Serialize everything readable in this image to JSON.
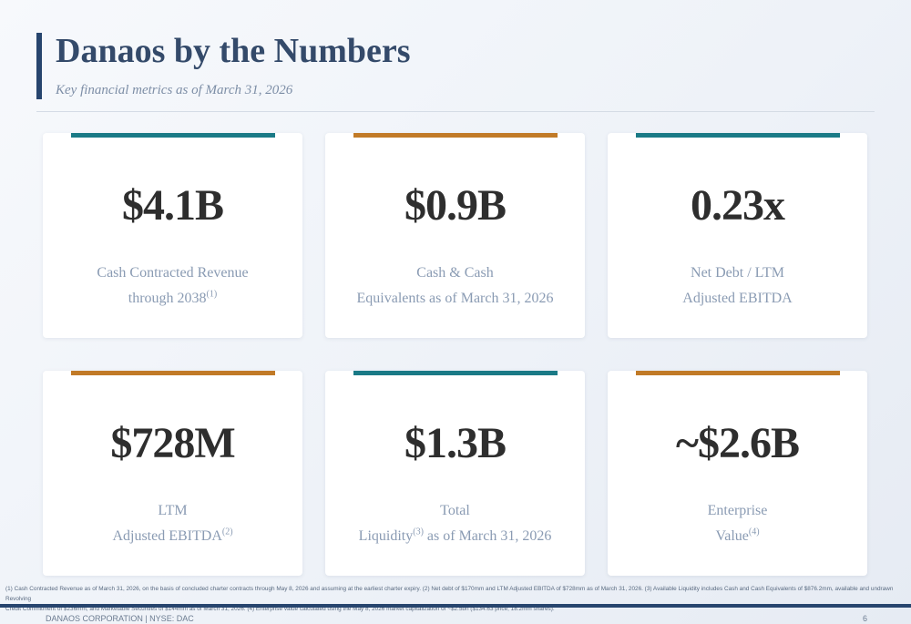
{
  "header": {
    "title": "Danaos by the Numbers",
    "subtitle": "Key financial metrics as of March 31, 2026"
  },
  "colors": {
    "teal": "#1a7a86",
    "amber": "#c17a27",
    "navy": "#27456e"
  },
  "metrics": [
    {
      "value": "$4.1B",
      "label_line1": "Cash Contracted Revenue",
      "label_line2": "through 2038",
      "label_line2_sup": "(1)",
      "accent": "teal"
    },
    {
      "value": "$0.9B",
      "label_line1": "Cash & Cash",
      "label_line2": "Equivalents as of March 31, 2026",
      "accent": "amber"
    },
    {
      "value": "0.23x",
      "label_line1": "Net Debt / LTM",
      "label_line2": "Adjusted EBITDA",
      "accent": "teal"
    },
    {
      "value": "$728M",
      "label_line1": "LTM",
      "label_line2": "Adjusted EBITDA",
      "label_line2_sup": "(2)",
      "accent": "amber"
    },
    {
      "value": "$1.3B",
      "label_line1": "Total",
      "label_line2_pre": "Liquidity",
      "label_line2_sup": "(3)",
      "label_line2_post": " as of March 31, 2026",
      "accent": "teal"
    },
    {
      "value": "~$2.6B",
      "label_line1": "Enterprise",
      "label_line2": "Value",
      "label_line2_sup": "(4)",
      "accent": "amber"
    }
  ],
  "footnote": {
    "line1": "(1) Cash Contracted Revenue as of March 31, 2026, on the basis of concluded charter contracts through May 8, 2026 and assuming at the earliest charter expiry. (2) Net debt of $170mm and LTM Adjusted EBITDA of $728mm as of March 31, 2026. (3) Available Liquidity includes Cash and Cash Equivalents of $876.2mm, available and undrawn Revolving",
    "line2": "Credit Commitment of $236mm, and Marketable Securities of $144mm as of March 31, 2026. (4) Enterprise value calculated using the May 8, 2026 market capitalization of ~$2.5bn ($134.63 price; 18.2mm shares)."
  },
  "footer": {
    "company": "DANAOS CORPORATION  |  NYSE: DAC",
    "page_number": "6"
  }
}
